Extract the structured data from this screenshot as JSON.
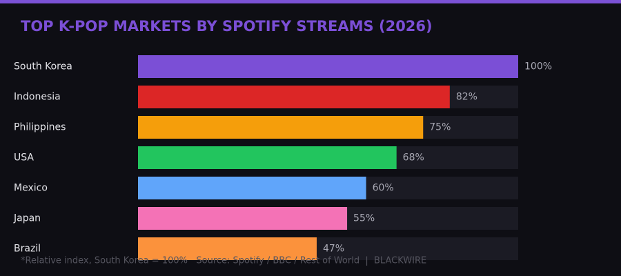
{
  "chart_data": {
    "type": "bar",
    "orientation": "horizontal",
    "title": "TOP K-POP MARKETS BY SPOTIFY STREAMS (2026)",
    "categories": [
      "South Korea",
      "Indonesia",
      "Philippines",
      "USA",
      "Mexico",
      "Japan",
      "Brazil"
    ],
    "values": [
      100,
      82,
      75,
      68,
      60,
      55,
      47
    ],
    "value_labels": [
      "100%",
      "82%",
      "75%",
      "68%",
      "60%",
      "55%",
      "47%"
    ],
    "colors": [
      "#7b4fd6",
      "#dc2626",
      "#f59e0b",
      "#22c55e",
      "#60a5fa",
      "#f472b6",
      "#fb923c"
    ],
    "xlim": [
      0,
      100
    ],
    "note": "*Relative index, South Korea = 100%   Source: Spotify / BBC / Rest of World  |  BLACKWIRE"
  }
}
